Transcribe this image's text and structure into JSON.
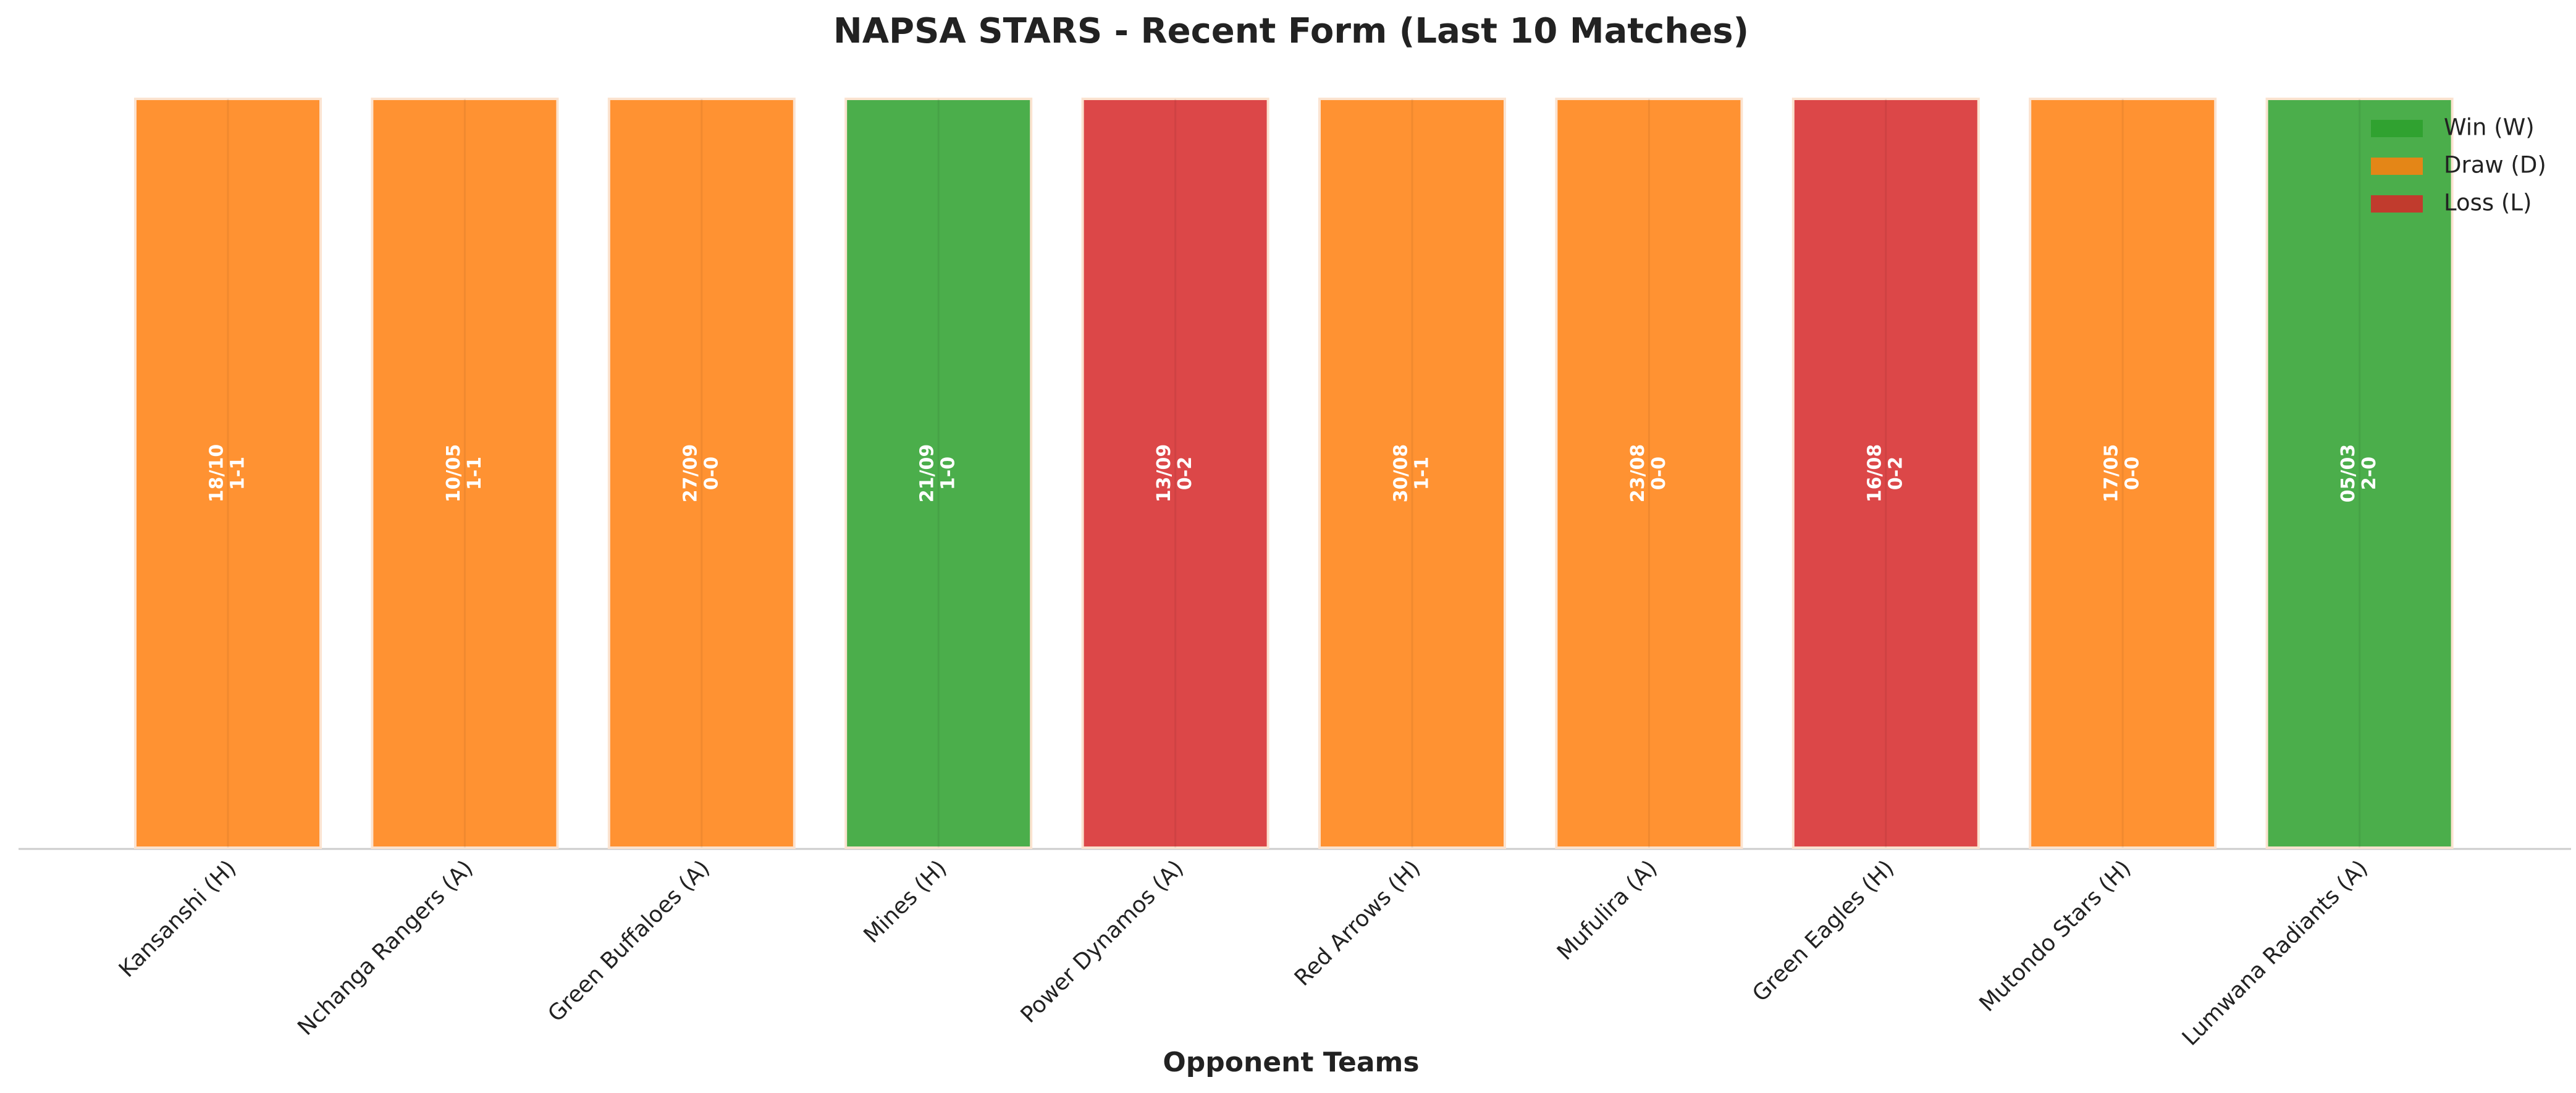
{
  "chart_data": {
    "type": "bar",
    "title": "NAPSA STARS - Recent Form (Last 10 Matches)",
    "x_label": "Opponent Teams",
    "categories": [
      "Kansanshi (H)",
      "Nchanga Rangers (A)",
      "Green Buffaloes (A)",
      "Mines (H)",
      "Power Dynamos (A)",
      "Red Arrows (H)",
      "Mufulira (A)",
      "Green Eagles (H)",
      "Mutondo Stars (H)",
      "Lumwana Radiants (A)"
    ],
    "dates": [
      "18/10",
      "10/05",
      "27/09",
      "21/09",
      "13/09",
      "30/08",
      "23/08",
      "16/08",
      "17/05",
      "05/03"
    ],
    "scores": [
      "1-1",
      "1-1",
      "0-0",
      "1-0",
      "0-2",
      "1-1",
      "0-0",
      "0-2",
      "0-0",
      "2-0"
    ],
    "series": [
      {
        "name": "Win (W)",
        "color": "#2ca02c",
        "values": [
          null,
          null,
          null,
          1,
          null,
          null,
          null,
          null,
          null,
          1
        ]
      },
      {
        "name": "Draw (D)",
        "color": "#ff7f0e",
        "values": [
          1,
          1,
          1,
          null,
          null,
          1,
          1,
          null,
          1,
          null
        ]
      },
      {
        "name": "Loss (L)",
        "color": "#d62728",
        "values": [
          null,
          null,
          null,
          null,
          1,
          null,
          null,
          1,
          null,
          null
        ]
      }
    ],
    "ylim": [
      0,
      1
    ],
    "legend": "upper right"
  }
}
